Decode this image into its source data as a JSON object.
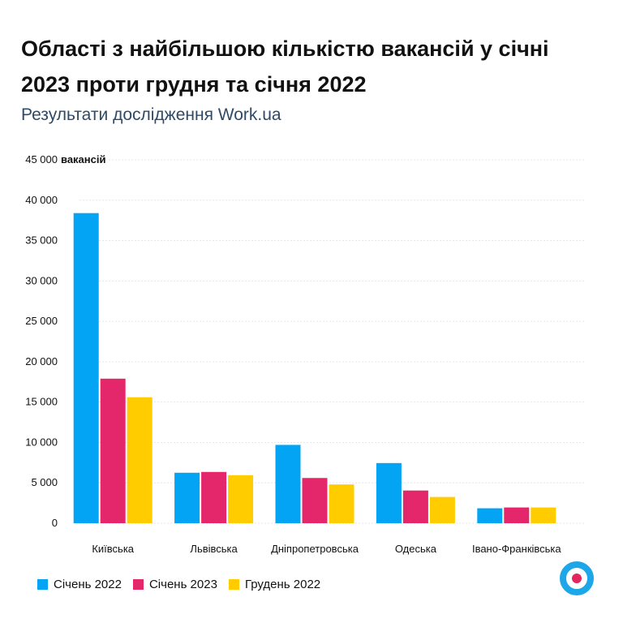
{
  "header": {
    "title": "Області з найбільшою кількістю вакансій у січні 2023 проти грудня та січня 2022",
    "subtitle": "Результати дослідження Work.ua"
  },
  "chart_data": {
    "type": "bar",
    "ylabel": "вакансій",
    "ylim": [
      0,
      45000
    ],
    "yticks": [
      0,
      5000,
      10000,
      15000,
      20000,
      25000,
      30000,
      35000,
      40000,
      45000
    ],
    "ytick_labels": [
      "0",
      "5 000",
      "10 000",
      "15 000",
      "20 000",
      "25 000",
      "30 000",
      "35 000",
      "40 000",
      "45 000"
    ],
    "categories": [
      "Київська",
      "Львівська",
      "Дніпропетровська",
      "Одеська",
      "Івано-Франківська"
    ],
    "series": [
      {
        "name": "Січень 2022",
        "color": "#04a4f4",
        "values": [
          38400,
          6250,
          9700,
          7450,
          1850
        ]
      },
      {
        "name": "Січень 2023",
        "color": "#e3276a",
        "values": [
          17900,
          6350,
          5600,
          4050,
          1950
        ]
      },
      {
        "name": "Грудень 2022",
        "color": "#ffcc00",
        "values": [
          15600,
          5950,
          4800,
          3250,
          1950
        ]
      }
    ],
    "grid": true,
    "legend": "bottom-left"
  },
  "brand": {
    "logo": "work-ua-logo-icon",
    "ring_color": "#1ea7e8",
    "dot_color": "#e3265e"
  }
}
